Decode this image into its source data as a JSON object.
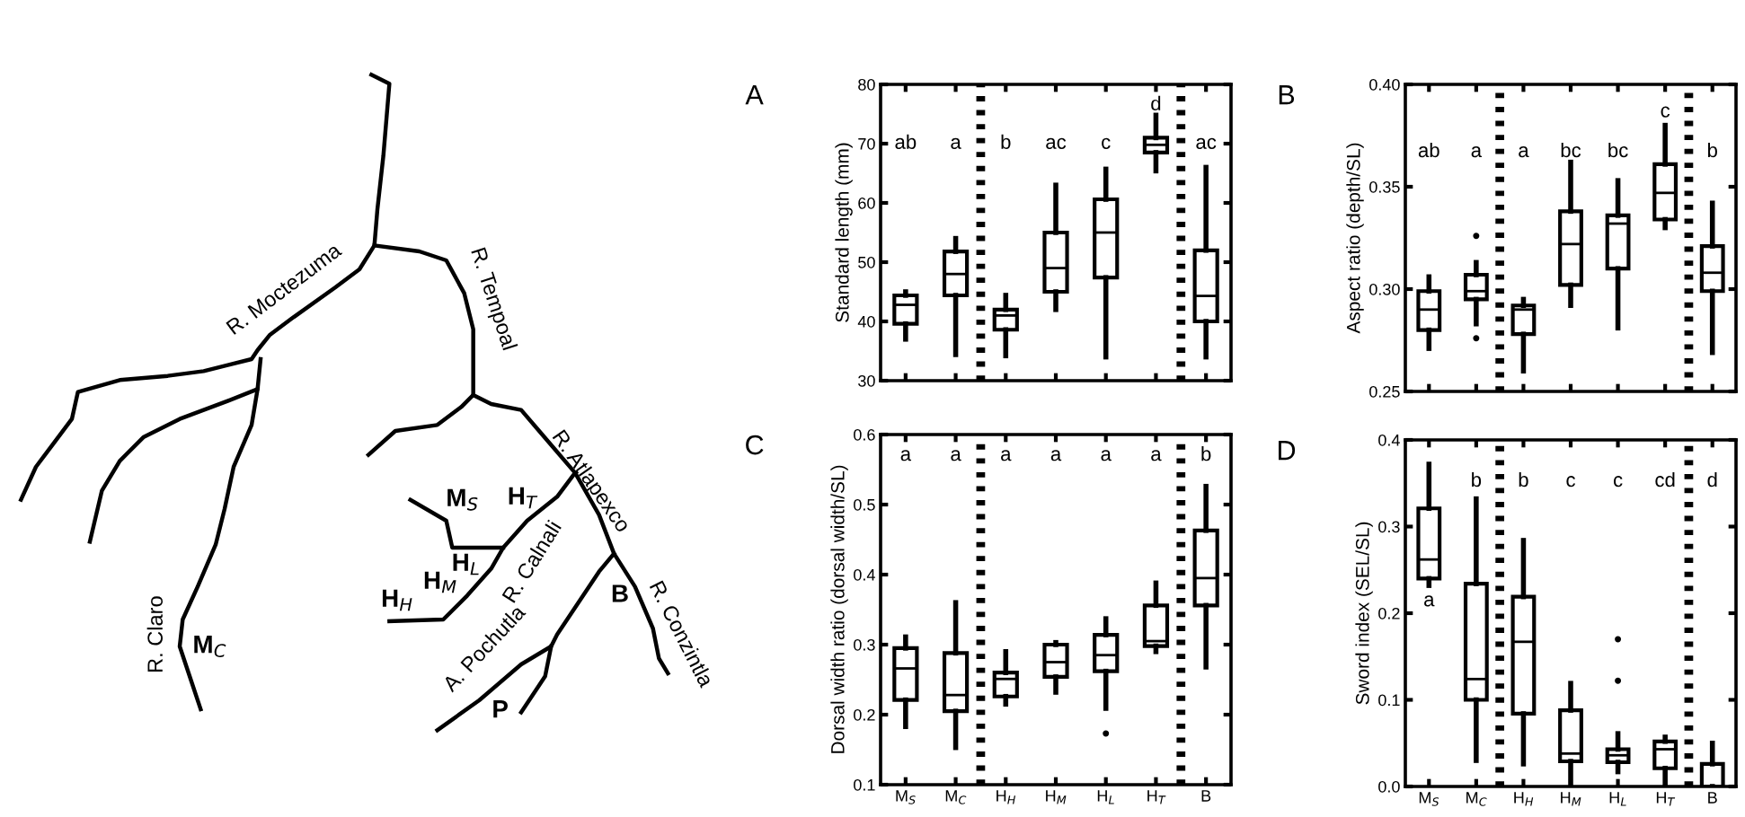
{
  "chart_data": [
    {
      "type": "other",
      "annotations": [
        "R. Moctezuma",
        "R. Tempoal",
        "R. Atlapexco",
        "R. Conzintla",
        "R. Calnali",
        "A. Pochutla",
        "R. Claro",
        "M$_{C}$",
        "M$_{S}$",
        "H$_{T}$",
        "H$_{L}$",
        "H$_{M}$",
        "H$_{H}$",
        "B",
        "P"
      ]
    },
    {
      "type": "box",
      "title": "A",
      "ylabel": "Standard length (mm)",
      "tick_labels": "y",
      "categories": [
        null,
        null,
        null,
        null,
        null,
        null,
        null
      ],
      "ylim": [
        30,
        80
      ],
      "yticks": [
        30,
        40,
        50,
        60,
        70,
        80
      ],
      "boxes": [
        {
          "low": 37,
          "q1": 39.6,
          "median": 42.8,
          "q3": 44.4,
          "high": 45
        },
        {
          "low": 34.4,
          "q1": 44.4,
          "median": 48,
          "q3": 51.8,
          "high": 54
        },
        {
          "low": 34.2,
          "q1": 38.6,
          "median": 41,
          "q3": 42,
          "high": 44.4
        },
        {
          "low": 42,
          "q1": 45,
          "median": 49,
          "q3": 55,
          "high": 63
        },
        {
          "low": 34,
          "q1": 47.4,
          "median": 55,
          "q3": 60.6,
          "high": 65.7
        },
        {
          "low": 65.4,
          "q1": 68.5,
          "median": 69.8,
          "q3": 71,
          "high": 74.8
        },
        {
          "low": 34,
          "q1": 40,
          "median": 44.3,
          "q3": 52,
          "high": 66
        }
      ],
      "annotations": [
        "ab",
        "a",
        "b",
        "ac",
        "c",
        "d",
        "ac"
      ]
    },
    {
      "type": "box",
      "title": "B",
      "ylabel": "Aspect ratio (depth/SL)",
      "tick_labels": "y",
      "categories": [
        null,
        null,
        null,
        null,
        null,
        null,
        null
      ],
      "ylim": [
        0.25,
        0.4
      ],
      "yticks": [
        {
          "value": 0.25,
          "label": "0.25"
        },
        {
          "value": 0.3,
          "label": "0.30"
        },
        {
          "value": 0.35,
          "label": "0.35"
        },
        {
          "value": 0.4,
          "label": "0.40"
        }
      ],
      "boxes": [
        {
          "low": 0.271,
          "q1": 0.28,
          "median": 0.29,
          "q3": 0.299,
          "high": 0.306
        },
        {
          "low": 0.283,
          "q1": 0.295,
          "median": 0.299,
          "q3": 0.307,
          "high": 0.313,
          "outliers": [
            0.326,
            0.276
          ]
        },
        {
          "low": 0.26,
          "q1": 0.278,
          "median": 0.29,
          "q3": 0.292,
          "high": 0.295
        },
        {
          "low": 0.292,
          "q1": 0.302,
          "median": 0.322,
          "q3": 0.338,
          "high": 0.362
        },
        {
          "low": 0.281,
          "q1": 0.31,
          "median": 0.332,
          "q3": 0.336,
          "high": 0.353
        },
        {
          "low": 0.33,
          "q1": 0.334,
          "median": 0.347,
          "q3": 0.361,
          "high": 0.38
        },
        {
          "low": 0.269,
          "q1": 0.299,
          "median": 0.308,
          "q3": 0.321,
          "high": 0.342
        }
      ],
      "annotations": [
        "ab",
        "a",
        "a",
        "bc",
        "bc",
        "c",
        "b"
      ]
    },
    {
      "type": "box",
      "title": "C",
      "ylabel": "Dorsal width ratio (dorsal width/SL)",
      "categories": [
        "M$_{S}$",
        "M$_{C}$",
        "H$_{H}$",
        "H$_{M}$",
        "H$_{L}$",
        "H$_{T}$",
        "B"
      ],
      "ylim": [
        0.1,
        0.6
      ],
      "yticks": [
        0.1,
        0.2,
        0.3,
        0.4,
        0.5,
        0.6
      ],
      "boxes": [
        {
          "low": 0.183,
          "q1": 0.221,
          "median": 0.266,
          "q3": 0.295,
          "high": 0.311
        },
        {
          "low": 0.153,
          "q1": 0.205,
          "median": 0.228,
          "q3": 0.288,
          "high": 0.36
        },
        {
          "low": 0.215,
          "q1": 0.226,
          "median": 0.251,
          "q3": 0.26,
          "high": 0.29
        },
        {
          "low": 0.232,
          "q1": 0.254,
          "median": 0.275,
          "q3": 0.3,
          "high": 0.303
        },
        {
          "low": 0.209,
          "q1": 0.262,
          "median": 0.285,
          "q3": 0.314,
          "high": 0.337,
          "outliers": [
            0.173
          ]
        },
        {
          "low": 0.29,
          "q1": 0.298,
          "median": 0.305,
          "q3": 0.356,
          "high": 0.388
        },
        {
          "low": 0.268,
          "q1": 0.356,
          "median": 0.395,
          "q3": 0.463,
          "high": 0.526
        }
      ],
      "annotations": [
        "a",
        "a",
        "a",
        "a",
        "a",
        "a",
        "b"
      ]
    },
    {
      "type": "box",
      "title": "D",
      "ylabel": "Sword index (SEL/SL)",
      "categories": [
        "M$_{S}$",
        "M$_{C}$",
        "H$_{H}$",
        "H$_{M}$",
        "H$_{L}$",
        "H$_{T}$",
        "B"
      ],
      "ylim": [
        0,
        0.4
      ],
      "yticks": [
        {
          "value": 0,
          "label": "0.0"
        },
        0.1,
        0.2,
        0.3,
        0.4
      ],
      "boxes": [
        {
          "low": 0.232,
          "q1": 0.24,
          "median": 0.262,
          "q3": 0.321,
          "high": 0.372
        },
        {
          "low": 0.03,
          "q1": 0.1,
          "median": 0.124,
          "q3": 0.234,
          "high": 0.332
        },
        {
          "low": 0.026,
          "q1": 0.084,
          "median": 0.167,
          "q3": 0.219,
          "high": 0.284
        },
        {
          "low": 0.0,
          "q1": 0.029,
          "median": 0.038,
          "q3": 0.088,
          "high": 0.119
        },
        {
          "low": 0.017,
          "q1": 0.028,
          "median": 0.036,
          "q3": 0.043,
          "high": 0.061,
          "outliers": [
            0.17,
            0.122
          ]
        },
        {
          "low": 0.0,
          "q1": 0.021,
          "median": 0.043,
          "q3": 0.052,
          "high": 0.057
        },
        {
          "low": 0.0,
          "q1": 0.0,
          "median": 0.0,
          "q3": 0.026,
          "high": 0.05
        }
      ],
      "annotations": [
        "a",
        "b",
        "b",
        "c",
        "c",
        "cd",
        "d"
      ]
    }
  ]
}
